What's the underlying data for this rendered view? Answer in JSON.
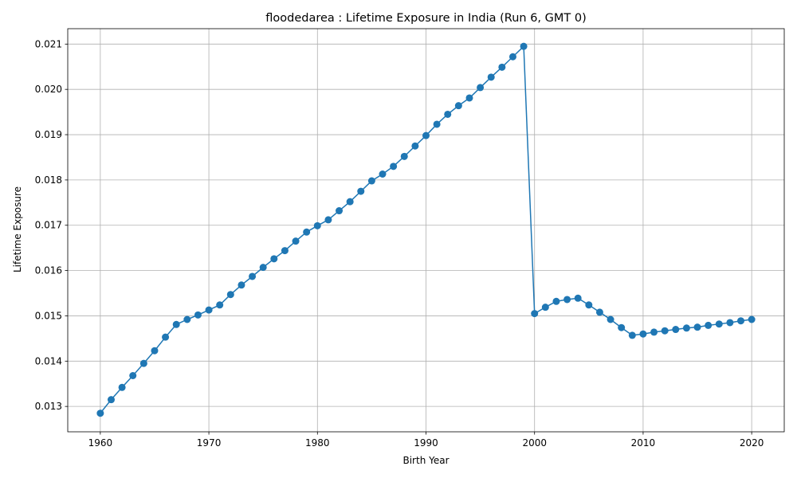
{
  "chart_data": {
    "type": "line",
    "title": "floodedarea : Lifetime Exposure in India (Run 6, GMT 0)",
    "xlabel": "Birth Year",
    "ylabel": "Lifetime Exposure",
    "xlim": [
      1957,
      2023
    ],
    "ylim": [
      0.01244,
      0.02134
    ],
    "xticks": [
      1960,
      1970,
      1980,
      1990,
      2000,
      2010,
      2020
    ],
    "xtick_labels": [
      "1960",
      "1970",
      "1980",
      "1990",
      "2000",
      "2010",
      "2020"
    ],
    "yticks": [
      0.013,
      0.014,
      0.015,
      0.016,
      0.017,
      0.018,
      0.019,
      0.02,
      0.021
    ],
    "ytick_labels": [
      "0.013",
      "0.014",
      "0.015",
      "0.016",
      "0.017",
      "0.018",
      "0.019",
      "0.020",
      "0.021"
    ],
    "grid": true,
    "color": "#1f77b4",
    "marker": "circle",
    "series": [
      {
        "x": [
          1960,
          1961,
          1962,
          1963,
          1964,
          1965,
          1966,
          1967,
          1968,
          1969,
          1970,
          1971,
          1972,
          1973,
          1974,
          1975,
          1976,
          1977,
          1978,
          1979,
          1980,
          1981,
          1982,
          1983,
          1984,
          1985,
          1986,
          1987,
          1988,
          1989,
          1990,
          1991,
          1992,
          1993,
          1994,
          1995,
          1996,
          1997,
          1998,
          1999,
          2000,
          2001,
          2002,
          2003,
          2004,
          2005,
          2006,
          2007,
          2008,
          2009,
          2010,
          2011,
          2012,
          2013,
          2014,
          2015,
          2016,
          2017,
          2018,
          2019,
          2020
        ],
        "values": [
          0.01285,
          0.01315,
          0.01342,
          0.01368,
          0.01395,
          0.01423,
          0.01453,
          0.01481,
          0.01492,
          0.01502,
          0.01513,
          0.01524,
          0.01547,
          0.01568,
          0.01587,
          0.01607,
          0.01626,
          0.01644,
          0.01665,
          0.01685,
          0.01699,
          0.01712,
          0.01732,
          0.01752,
          0.01775,
          0.01798,
          0.01813,
          0.0183,
          0.01852,
          0.01875,
          0.01898,
          0.01923,
          0.01945,
          0.01964,
          0.01981,
          0.02004,
          0.02027,
          0.02049,
          0.02072,
          0.02095,
          0.01505,
          0.01519,
          0.01532,
          0.01536,
          0.01539,
          0.01524,
          0.01508,
          0.01492,
          0.01474,
          0.01457,
          0.0146,
          0.01464,
          0.01467,
          0.0147,
          0.01473,
          0.01475,
          0.01479,
          0.01482,
          0.01485,
          0.01489,
          0.01492
        ]
      }
    ]
  }
}
